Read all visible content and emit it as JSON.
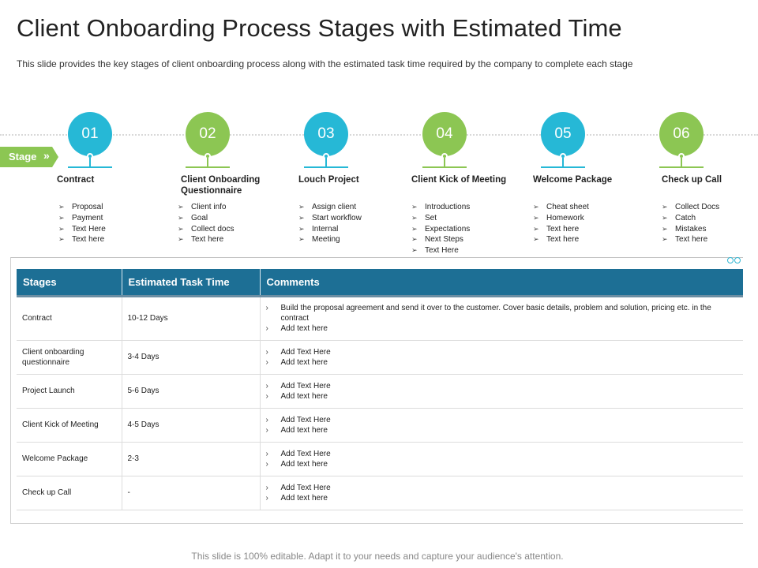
{
  "title": "Client Onboarding Process Stages with Estimated Time",
  "subtitle": "This slide provides  the key stages of client onboarding  process along with the estimated task time required  by the company to complete each stage",
  "stage_tag": {
    "label": "Stage",
    "chevron": "»"
  },
  "colors": {
    "teal": "#26b8d6",
    "green": "#8cc653",
    "header_blue": "#1d6f95"
  },
  "stages": [
    {
      "number": "01",
      "title": "Contract",
      "color": "teal",
      "bullets": [
        "Proposal",
        "Payment",
        "Text Here",
        "Text here"
      ]
    },
    {
      "number": "02",
      "title": "Client Onboarding Questionnaire",
      "color": "green",
      "bullets": [
        "Client info",
        "Goal",
        "Collect docs",
        "Text here"
      ]
    },
    {
      "number": "03",
      "title": "Louch Project",
      "color": "teal",
      "bullets": [
        "Assign client",
        "Start workflow",
        "Internal",
        "Meeting"
      ]
    },
    {
      "number": "04",
      "title": "Client Kick of Meeting",
      "color": "green",
      "bullets": [
        "Introductions",
        "Set",
        "Expectations",
        "Next Steps",
        "Text Here"
      ]
    },
    {
      "number": "05",
      "title": "Welcome Package",
      "color": "teal",
      "bullets": [
        "Cheat sheet",
        "Homework",
        "Text here",
        "Text here"
      ]
    },
    {
      "number": "06",
      "title": "Check up Call",
      "color": "green",
      "bullets": [
        "Collect Docs",
        "Catch",
        "Mistakes",
        "Text here"
      ]
    }
  ],
  "table": {
    "headers": [
      "Stages",
      "Estimated Task Time",
      "Comments"
    ],
    "rows": [
      {
        "stage": "Contract",
        "time": "10-12 Days",
        "comments": [
          "Build the proposal agreement and send it over to the customer. Cover basic details, problem and solution, pricing etc. in the contract",
          "Add text here"
        ]
      },
      {
        "stage": "Client onboarding questionnaire",
        "time": "3-4 Days",
        "comments": [
          "Add Text Here",
          "Add text here"
        ]
      },
      {
        "stage": "Project Launch",
        "time": "5-6 Days",
        "comments": [
          "Add Text Here",
          "Add text here"
        ]
      },
      {
        "stage": "Client Kick of Meeting",
        "time": "4-5 Days",
        "comments": [
          "Add Text Here",
          "Add text here"
        ]
      },
      {
        "stage": "Welcome Package",
        "time": "2-3",
        "comments": [
          "Add Text Here",
          "Add text here"
        ]
      },
      {
        "stage": "Check up Call",
        "time": "-",
        "comments": [
          "Add Text Here",
          "Add text here"
        ]
      }
    ]
  },
  "footer": "This slide is 100% editable. Adapt it to your needs and capture your audience's attention."
}
